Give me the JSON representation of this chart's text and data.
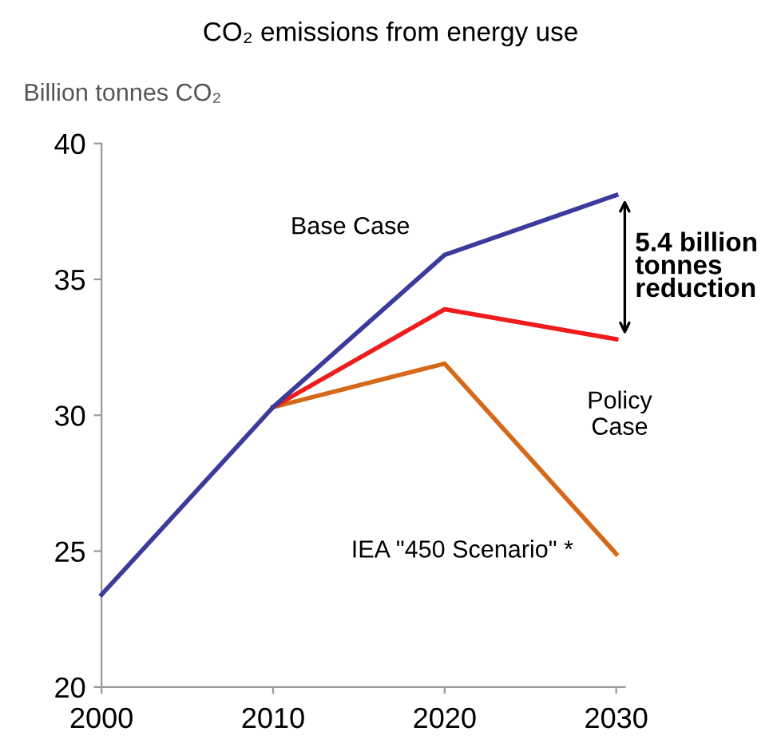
{
  "chart_data": {
    "type": "line",
    "title": "CO₂ emissions from energy use",
    "ylabel": "Billion tonnes CO₂",
    "x": [
      2000,
      2010,
      2020,
      2030
    ],
    "series": [
      {
        "name": "Base Case",
        "color": "#3b3b9c",
        "values": [
          23.4,
          30.3,
          35.9,
          38.1
        ]
      },
      {
        "name": "Policy\nCase",
        "color": "#ee1c1c",
        "values": [
          null,
          30.3,
          33.9,
          32.8
        ]
      },
      {
        "name": "IEA \"450 Scenario\" *",
        "color": "#d4691a",
        "values": [
          null,
          30.3,
          31.9,
          24.9
        ]
      }
    ],
    "annotations": [
      "5.4 billion\ntonnes\nreduction"
    ],
    "xlim": [
      2000,
      2030.5
    ],
    "ylim": [
      20,
      40
    ],
    "xticks": [
      2000,
      2010,
      2020,
      2030
    ],
    "yticks": [
      20,
      25,
      30,
      35,
      40
    ],
    "grid": false,
    "legend": false,
    "marker": "none",
    "line_style": "solid"
  }
}
